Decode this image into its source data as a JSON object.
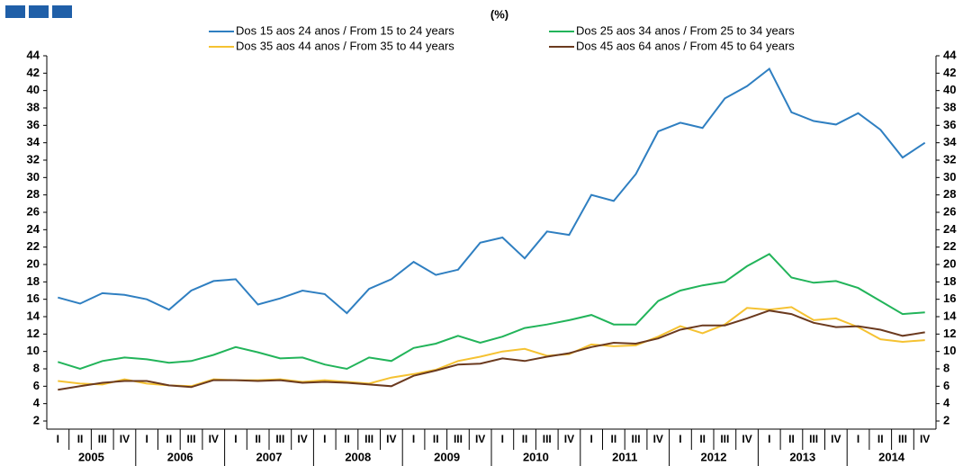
{
  "chart_data": {
    "type": "line",
    "subtitle": "(%)",
    "categories": [
      "I",
      "II",
      "III",
      "IV",
      "I",
      "II",
      "III",
      "IV",
      "I",
      "II",
      "III",
      "IV",
      "I",
      "II",
      "III",
      "IV",
      "I",
      "II",
      "III",
      "IV",
      "I",
      "II",
      "III",
      "IV",
      "I",
      "II",
      "III",
      "IV",
      "I",
      "II",
      "III",
      "IV",
      "I",
      "II",
      "III",
      "IV",
      "I",
      "II",
      "III",
      "IV"
    ],
    "years": [
      "2005",
      "2006",
      "2007",
      "2008",
      "2009",
      "2010",
      "2011",
      "2012",
      "2013",
      "2014"
    ],
    "series": [
      {
        "name": "Dos 15 aos 24 anos / From 15 to 24 years",
        "color": "#2f7fc1",
        "values": [
          16.2,
          15.5,
          16.7,
          16.5,
          16.0,
          14.8,
          17.0,
          18.1,
          18.3,
          15.4,
          16.1,
          17.0,
          16.6,
          14.4,
          17.2,
          18.3,
          20.3,
          18.8,
          19.4,
          22.5,
          23.1,
          20.7,
          23.8,
          23.4,
          28.0,
          27.3,
          30.4,
          35.3,
          36.3,
          35.7,
          39.1,
          40.5,
          42.5,
          37.5,
          36.5,
          36.1,
          37.4,
          35.5,
          32.3,
          34.0
        ]
      },
      {
        "name": "Dos 25 aos 34 anos / From 25 to 34 years",
        "color": "#22b45a",
        "values": [
          8.8,
          8.0,
          8.9,
          9.3,
          9.1,
          8.7,
          8.9,
          9.6,
          10.5,
          9.9,
          9.2,
          9.3,
          8.5,
          8.0,
          9.3,
          8.9,
          10.4,
          10.9,
          11.8,
          11.0,
          11.7,
          12.7,
          13.1,
          13.6,
          14.2,
          13.1,
          13.1,
          15.8,
          17.0,
          17.6,
          18.0,
          19.8,
          21.2,
          18.5,
          17.9,
          18.1,
          17.3,
          15.8,
          14.3,
          14.5
        ]
      },
      {
        "name": "Dos 35 aos 44 anos / From 35 to 44 years",
        "color": "#f5c232",
        "values": [
          6.6,
          6.3,
          6.2,
          6.8,
          6.3,
          6.1,
          6.0,
          6.8,
          6.7,
          6.7,
          6.8,
          6.5,
          6.7,
          6.5,
          6.3,
          7.0,
          7.4,
          7.9,
          8.9,
          9.4,
          10.0,
          10.3,
          9.5,
          9.7,
          10.8,
          10.6,
          10.7,
          11.7,
          12.9,
          12.1,
          13.1,
          15.0,
          14.8,
          15.1,
          13.6,
          13.8,
          12.8,
          11.4,
          11.1,
          11.3
        ]
      },
      {
        "name": "Dos 45 aos 64 anos / From 45 to 64 years",
        "color": "#6b3a1f",
        "values": [
          5.6,
          6.0,
          6.4,
          6.6,
          6.6,
          6.1,
          5.9,
          6.7,
          6.7,
          6.6,
          6.7,
          6.4,
          6.5,
          6.4,
          6.2,
          6.0,
          7.2,
          7.8,
          8.5,
          8.6,
          9.2,
          8.9,
          9.4,
          9.8,
          10.5,
          11.0,
          10.9,
          11.5,
          12.5,
          13.0,
          13.0,
          13.8,
          14.7,
          14.3,
          13.3,
          12.8,
          12.9,
          12.5,
          11.8,
          12.2
        ]
      }
    ],
    "ylim": [
      2,
      44
    ],
    "yticks": [
      2,
      4,
      6,
      8,
      10,
      12,
      14,
      16,
      18,
      20,
      22,
      24,
      26,
      28,
      30,
      32,
      34,
      36,
      38,
      40,
      42,
      44
    ],
    "y2lim": [
      2,
      44
    ],
    "y2ticks": [
      2,
      4,
      6,
      8,
      10,
      12,
      14,
      16,
      18,
      20,
      22,
      24,
      26,
      28,
      30,
      32,
      34,
      36,
      38,
      40,
      42,
      44
    ]
  }
}
